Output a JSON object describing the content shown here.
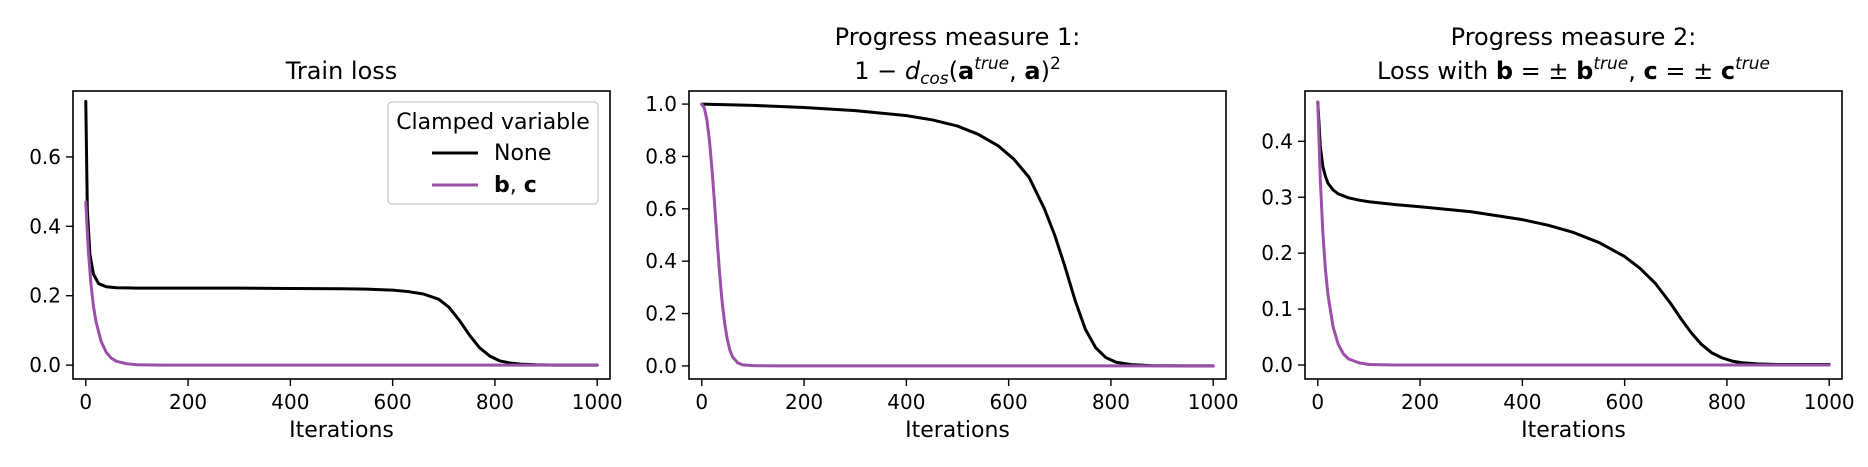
{
  "figure": {
    "legend": {
      "title": "Clamped variable",
      "placement": "upper right of first panel",
      "entries": [
        {
          "label": "None",
          "color": "#000000"
        },
        {
          "label": "b, c",
          "color": "#9b4fa8"
        }
      ]
    }
  },
  "chart_data": [
    {
      "type": "line",
      "title": "Train loss",
      "xlabel": "Iterations",
      "ylabel": "",
      "xlim": [
        -25,
        1025
      ],
      "ylim": [
        -0.04,
        0.79
      ],
      "xticks": [
        0,
        200,
        400,
        600,
        800,
        1000
      ],
      "yticks": [
        0.0,
        0.2,
        0.4,
        0.6
      ],
      "ytick_labels": [
        "0.0",
        "0.2",
        "0.4",
        "0.6"
      ],
      "grid": false,
      "series": [
        {
          "name": "None",
          "color": "#000000",
          "x": [
            0,
            3,
            8,
            15,
            25,
            40,
            60,
            100,
            200,
            300,
            400,
            500,
            550,
            600,
            630,
            660,
            690,
            710,
            730,
            750,
            770,
            790,
            810,
            830,
            850,
            880,
            920,
            1000
          ],
          "y": [
            0.76,
            0.45,
            0.32,
            0.262,
            0.235,
            0.226,
            0.223,
            0.222,
            0.222,
            0.222,
            0.221,
            0.22,
            0.219,
            0.216,
            0.212,
            0.205,
            0.19,
            0.167,
            0.13,
            0.087,
            0.05,
            0.026,
            0.012,
            0.006,
            0.003,
            0.001,
            0.0,
            0.0
          ]
        },
        {
          "name": "b, c",
          "color": "#9b4fa8",
          "x": [
            0,
            5,
            10,
            15,
            20,
            30,
            40,
            50,
            60,
            80,
            100,
            150,
            200,
            400,
            600,
            800,
            1000
          ],
          "y": [
            0.47,
            0.33,
            0.235,
            0.17,
            0.125,
            0.068,
            0.037,
            0.02,
            0.011,
            0.004,
            0.001,
            0.0,
            0.0,
            0.0,
            0.0,
            0.0,
            0.0
          ]
        }
      ]
    },
    {
      "type": "line",
      "title": "Progress measure 1:",
      "title_line2": "1 − d_cos(a^true, a)^2",
      "xlabel": "Iterations",
      "ylabel": "",
      "xlim": [
        -25,
        1025
      ],
      "ylim": [
        -0.05,
        1.05
      ],
      "xticks": [
        0,
        200,
        400,
        600,
        800,
        1000
      ],
      "yticks": [
        0.0,
        0.2,
        0.4,
        0.6,
        0.8,
        1.0
      ],
      "ytick_labels": [
        "0.0",
        "0.2",
        "0.4",
        "0.6",
        "0.8",
        "1.0"
      ],
      "grid": false,
      "series": [
        {
          "name": "None",
          "color": "#000000",
          "x": [
            0,
            100,
            200,
            300,
            400,
            450,
            500,
            540,
            580,
            610,
            640,
            670,
            690,
            710,
            730,
            750,
            770,
            790,
            810,
            840,
            880,
            950,
            1000
          ],
          "y": [
            1.0,
            0.995,
            0.987,
            0.975,
            0.956,
            0.94,
            0.916,
            0.885,
            0.84,
            0.79,
            0.72,
            0.6,
            0.5,
            0.38,
            0.25,
            0.14,
            0.07,
            0.032,
            0.014,
            0.005,
            0.001,
            0.0,
            0.0
          ]
        },
        {
          "name": "b, c",
          "color": "#9b4fa8",
          "x": [
            0,
            5,
            10,
            15,
            20,
            25,
            30,
            35,
            40,
            45,
            50,
            55,
            60,
            70,
            80,
            100,
            150,
            200,
            1000
          ],
          "y": [
            1.0,
            0.985,
            0.94,
            0.86,
            0.75,
            0.62,
            0.48,
            0.35,
            0.24,
            0.16,
            0.1,
            0.06,
            0.035,
            0.012,
            0.004,
            0.001,
            0.0,
            0.0,
            0.0
          ]
        }
      ]
    },
    {
      "type": "line",
      "title": "Progress measure 2:",
      "title_line2": "Loss with b = ± b^true, c = ± c^true",
      "xlabel": "Iterations",
      "ylabel": "",
      "xlim": [
        -25,
        1025
      ],
      "ylim": [
        -0.025,
        0.49
      ],
      "xticks": [
        0,
        200,
        400,
        600,
        800,
        1000
      ],
      "yticks": [
        0.0,
        0.1,
        0.2,
        0.3,
        0.4
      ],
      "ytick_labels": [
        "0.0",
        "0.1",
        "0.2",
        "0.3",
        "0.4"
      ],
      "grid": false,
      "series": [
        {
          "name": "None",
          "color": "#000000",
          "x": [
            0,
            5,
            10,
            15,
            20,
            30,
            40,
            60,
            80,
            100,
            150,
            200,
            300,
            400,
            450,
            500,
            550,
            600,
            630,
            660,
            690,
            710,
            730,
            750,
            770,
            790,
            810,
            830,
            860,
            900,
            1000
          ],
          "y": [
            0.47,
            0.39,
            0.355,
            0.337,
            0.325,
            0.313,
            0.306,
            0.299,
            0.295,
            0.292,
            0.287,
            0.283,
            0.274,
            0.26,
            0.25,
            0.237,
            0.219,
            0.194,
            0.173,
            0.146,
            0.11,
            0.083,
            0.058,
            0.037,
            0.022,
            0.013,
            0.007,
            0.004,
            0.002,
            0.001,
            0.001
          ]
        },
        {
          "name": "b, c",
          "color": "#9b4fa8",
          "x": [
            0,
            5,
            10,
            15,
            20,
            30,
            40,
            50,
            60,
            80,
            100,
            150,
            200,
            400,
            600,
            800,
            1000
          ],
          "y": [
            0.47,
            0.33,
            0.235,
            0.17,
            0.125,
            0.068,
            0.037,
            0.02,
            0.011,
            0.004,
            0.001,
            0.0,
            0.0,
            0.0,
            0.0,
            0.0,
            0.0
          ]
        }
      ]
    }
  ]
}
